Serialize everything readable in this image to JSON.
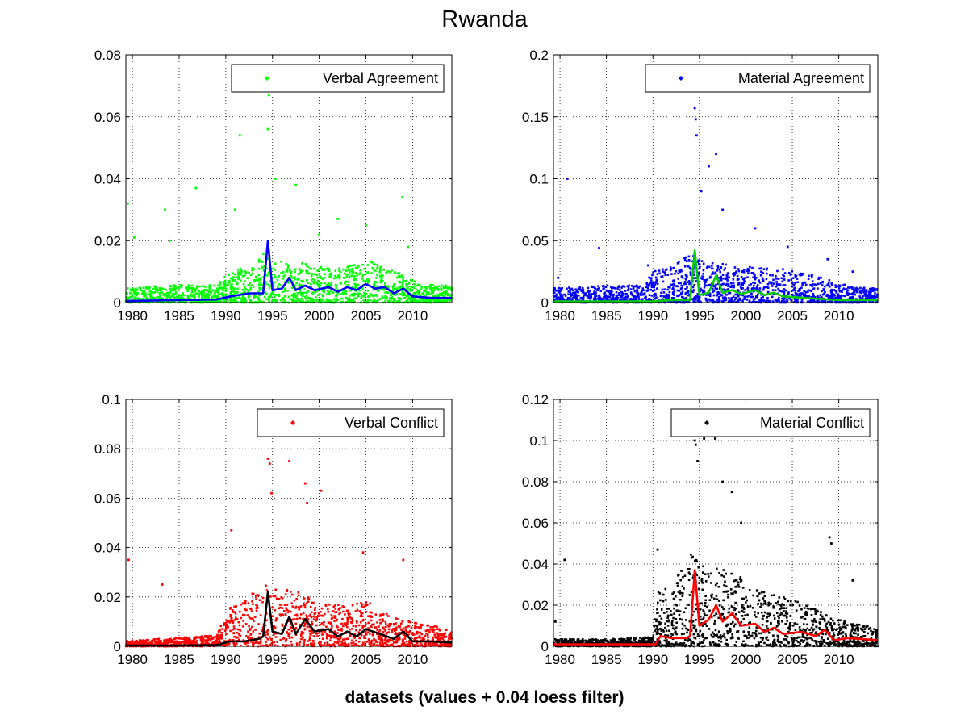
{
  "figure": {
    "title": "Rwanda",
    "footer": "datasets (values + 0.04 loess filter)"
  },
  "chart_data": [
    {
      "type": "scatter",
      "title": "",
      "xlabel": "",
      "ylabel": "",
      "xlim": [
        1979.3,
        2014.2
      ],
      "ylim": [
        0,
        0.08
      ],
      "xticks": [
        "1980",
        "1985",
        "1990",
        "1995",
        "2000",
        "2005",
        "2010"
      ],
      "yticks": [
        "0",
        "0.02",
        "0.04",
        "0.06",
        "0.08"
      ],
      "grid": true,
      "legend": "top-right",
      "series": [
        {
          "name": "Verbal Agreement",
          "kind": "points",
          "color": "#00ff00",
          "outliers": [
            [
              1979.5,
              0.032
            ],
            [
              1980.2,
              0.021
            ],
            [
              1983.5,
              0.03
            ],
            [
              1984.0,
              0.02
            ],
            [
              1986.8,
              0.037
            ],
            [
              1991.5,
              0.054
            ],
            [
              1991.0,
              0.03
            ],
            [
              1994.5,
              0.056
            ],
            [
              1994.6,
              0.067
            ],
            [
              1995.3,
              0.04
            ],
            [
              1997.5,
              0.038
            ],
            [
              2002.0,
              0.027
            ],
            [
              2005.0,
              0.025
            ],
            [
              2008.9,
              0.034
            ],
            [
              2000.0,
              0.022
            ],
            [
              2009.5,
              0.018
            ]
          ]
        },
        {
          "name": "",
          "kind": "smooth",
          "color": "#0000ff",
          "points": [
            [
              1979.3,
              0.0005
            ],
            [
              1985,
              0.0008
            ],
            [
              1989,
              0.001
            ],
            [
              1990.5,
              0.002
            ],
            [
              1992.5,
              0.003
            ],
            [
              1994.0,
              0.003
            ],
            [
              1994.5,
              0.02
            ],
            [
              1995.0,
              0.004
            ],
            [
              1996.0,
              0.0045
            ],
            [
              1996.8,
              0.008
            ],
            [
              1997.5,
              0.004
            ],
            [
              1998.5,
              0.0055
            ],
            [
              1999.5,
              0.004
            ],
            [
              2001,
              0.005
            ],
            [
              2002,
              0.0035
            ],
            [
              2003,
              0.005
            ],
            [
              2004,
              0.004
            ],
            [
              2005,
              0.006
            ],
            [
              2006,
              0.0045
            ],
            [
              2007,
              0.005
            ],
            [
              2008,
              0.003
            ],
            [
              2009,
              0.0045
            ],
            [
              2010,
              0.002
            ],
            [
              2012,
              0.0015
            ],
            [
              2014.2,
              0.0015
            ]
          ]
        }
      ],
      "density": [
        [
          1979,
          0.004
        ],
        [
          1985,
          0.005
        ],
        [
          1989,
          0.005
        ],
        [
          1990,
          0.008
        ],
        [
          1992,
          0.01
        ],
        [
          1994,
          0.014
        ],
        [
          1995,
          0.012
        ],
        [
          1997,
          0.012
        ],
        [
          2000,
          0.01
        ],
        [
          2003,
          0.01
        ],
        [
          2005,
          0.012
        ],
        [
          2007,
          0.01
        ],
        [
          2009,
          0.008
        ],
        [
          2011,
          0.005
        ],
        [
          2014,
          0.005
        ]
      ]
    },
    {
      "type": "scatter",
      "title": "",
      "xlabel": "",
      "ylabel": "",
      "xlim": [
        1979.3,
        2014.2
      ],
      "ylim": [
        0,
        0.2
      ],
      "xticks": [
        "1980",
        "1985",
        "1990",
        "1995",
        "2000",
        "2005",
        "2010"
      ],
      "yticks": [
        "0",
        "0.05",
        "0.1",
        "0.15",
        "0.2"
      ],
      "grid": true,
      "legend": "top-right",
      "series": [
        {
          "name": "Material Agreement",
          "kind": "points",
          "color": "#0000ff",
          "outliers": [
            [
              1980.8,
              0.1
            ],
            [
              1979.8,
              0.02
            ],
            [
              1984.2,
              0.044
            ],
            [
              1989.5,
              0.03
            ],
            [
              1994.5,
              0.157
            ],
            [
              1994.6,
              0.148
            ],
            [
              1994.7,
              0.135
            ],
            [
              1995.2,
              0.09
            ],
            [
              1996.8,
              0.12
            ],
            [
              1996.0,
              0.11
            ],
            [
              1997.5,
              0.075
            ],
            [
              2001.0,
              0.06
            ],
            [
              2004.5,
              0.045
            ],
            [
              2008.8,
              0.035
            ],
            [
              2011.5,
              0.025
            ]
          ]
        },
        {
          "name": "",
          "kind": "smooth",
          "color": "#00cc00",
          "points": [
            [
              1979.3,
              0.001
            ],
            [
              1985,
              0.001
            ],
            [
              1990,
              0.001
            ],
            [
              1992,
              0.002
            ],
            [
              1994.0,
              0.002
            ],
            [
              1994.5,
              0.042
            ],
            [
              1995.0,
              0.006
            ],
            [
              1996.0,
              0.008
            ],
            [
              1996.8,
              0.022
            ],
            [
              1997.5,
              0.008
            ],
            [
              1998.5,
              0.01
            ],
            [
              1999.5,
              0.007
            ],
            [
              2001,
              0.01
            ],
            [
              2002,
              0.006
            ],
            [
              2003,
              0.008
            ],
            [
              2004,
              0.005
            ],
            [
              2006,
              0.004
            ],
            [
              2008,
              0.003
            ],
            [
              2010,
              0.002
            ],
            [
              2014.2,
              0.002
            ]
          ]
        }
      ],
      "density": [
        [
          1979,
          0.01
        ],
        [
          1985,
          0.012
        ],
        [
          1989,
          0.012
        ],
        [
          1990,
          0.022
        ],
        [
          1992,
          0.025
        ],
        [
          1994,
          0.035
        ],
        [
          1995,
          0.03
        ],
        [
          1997,
          0.028
        ],
        [
          2000,
          0.025
        ],
        [
          2003,
          0.025
        ],
        [
          2005,
          0.022
        ],
        [
          2008,
          0.018
        ],
        [
          2011,
          0.012
        ],
        [
          2014,
          0.01
        ]
      ]
    },
    {
      "type": "scatter",
      "title": "",
      "xlabel": "",
      "ylabel": "",
      "xlim": [
        1979.3,
        2014.2
      ],
      "ylim": [
        0,
        0.1
      ],
      "xticks": [
        "1980",
        "1985",
        "1990",
        "1995",
        "2000",
        "2005",
        "2010"
      ],
      "yticks": [
        "0",
        "0.02",
        "0.04",
        "0.06",
        "0.08",
        "0.1"
      ],
      "grid": true,
      "legend": "top-right",
      "series": [
        {
          "name": "Verbal Conflict",
          "kind": "points",
          "color": "#ff0000",
          "outliers": [
            [
              1979.6,
              0.035
            ],
            [
              1983.2,
              0.025
            ],
            [
              1990.6,
              0.047
            ],
            [
              1994.5,
              0.076
            ],
            [
              1994.7,
              0.074
            ],
            [
              1996.8,
              0.075
            ],
            [
              1998.5,
              0.066
            ],
            [
              1998.7,
              0.058
            ],
            [
              2000.2,
              0.063
            ],
            [
              1994.9,
              0.062
            ],
            [
              2004.7,
              0.038
            ],
            [
              2009.0,
              0.035
            ]
          ]
        },
        {
          "name": "",
          "kind": "smooth",
          "color": "#000000",
          "points": [
            [
              1979.3,
              0.0003
            ],
            [
              1985,
              0.0003
            ],
            [
              1989,
              0.0005
            ],
            [
              1990.5,
              0.002
            ],
            [
              1992,
              0.002
            ],
            [
              1993.5,
              0.003
            ],
            [
              1994.0,
              0.004
            ],
            [
              1994.5,
              0.022
            ],
            [
              1995.0,
              0.006
            ],
            [
              1996.0,
              0.005
            ],
            [
              1996.8,
              0.012
            ],
            [
              1997.5,
              0.005
            ],
            [
              1998.5,
              0.011
            ],
            [
              1999.5,
              0.006
            ],
            [
              2001,
              0.007
            ],
            [
              2002,
              0.004
            ],
            [
              2003,
              0.006
            ],
            [
              2004,
              0.004
            ],
            [
              2005,
              0.007
            ],
            [
              2006.5,
              0.005
            ],
            [
              2008,
              0.003
            ],
            [
              2009,
              0.006
            ],
            [
              2010,
              0.002
            ],
            [
              2012,
              0.002
            ],
            [
              2014.2,
              0.0015
            ]
          ]
        }
      ],
      "density": [
        [
          1979,
          0.002
        ],
        [
          1985,
          0.003
        ],
        [
          1989,
          0.004
        ],
        [
          1990.5,
          0.014
        ],
        [
          1992,
          0.016
        ],
        [
          1994,
          0.022
        ],
        [
          1995,
          0.02
        ],
        [
          1997,
          0.02
        ],
        [
          2000,
          0.016
        ],
        [
          2003,
          0.014
        ],
        [
          2005,
          0.016
        ],
        [
          2008,
          0.01
        ],
        [
          2011,
          0.008
        ],
        [
          2014,
          0.006
        ]
      ]
    },
    {
      "type": "scatter",
      "title": "",
      "xlabel": "",
      "ylabel": "",
      "xlim": [
        1979.3,
        2014.2
      ],
      "ylim": [
        0,
        0.12
      ],
      "xticks": [
        "1980",
        "1985",
        "1990",
        "1995",
        "2000",
        "2005",
        "2010"
      ],
      "yticks": [
        "0",
        "0.02",
        "0.04",
        "0.06",
        "0.08",
        "0.1",
        "0.12"
      ],
      "grid": true,
      "legend": "top-right",
      "series": [
        {
          "name": "Material Conflict",
          "kind": "points",
          "color": "#000000",
          "outliers": [
            [
              1979.5,
              0.012
            ],
            [
              1980.5,
              0.042
            ],
            [
              1990.5,
              0.047
            ],
            [
              1994.5,
              0.1
            ],
            [
              1994.6,
              0.098
            ],
            [
              1994.8,
              0.09
            ],
            [
              1995.5,
              0.101
            ],
            [
              1996.7,
              0.101
            ],
            [
              1998.5,
              0.075
            ],
            [
              1997.5,
              0.08
            ],
            [
              1999.5,
              0.06
            ],
            [
              2009.0,
              0.053
            ],
            [
              2009.2,
              0.05
            ],
            [
              2011.5,
              0.032
            ]
          ]
        },
        {
          "name": "",
          "kind": "smooth",
          "color": "#ff0000",
          "points": [
            [
              1979.3,
              0.001
            ],
            [
              1985,
              0.001
            ],
            [
              1990.3,
              0.001
            ],
            [
              1990.8,
              0.005
            ],
            [
              1992,
              0.004
            ],
            [
              1993.5,
              0.004
            ],
            [
              1994.0,
              0.005
            ],
            [
              1994.5,
              0.037
            ],
            [
              1995.0,
              0.01
            ],
            [
              1996.0,
              0.013
            ],
            [
              1996.8,
              0.02
            ],
            [
              1997.5,
              0.012
            ],
            [
              1998.5,
              0.016
            ],
            [
              1999.5,
              0.01
            ],
            [
              2001,
              0.011
            ],
            [
              2002,
              0.007
            ],
            [
              2003,
              0.009
            ],
            [
              2004,
              0.006
            ],
            [
              2006,
              0.007
            ],
            [
              2007.5,
              0.005
            ],
            [
              2008.5,
              0.008
            ],
            [
              2009.5,
              0.003
            ],
            [
              2011,
              0.004
            ],
            [
              2014.2,
              0.003
            ]
          ]
        }
      ],
      "density": [
        [
          1979,
          0.003
        ],
        [
          1985,
          0.003
        ],
        [
          1990,
          0.004
        ],
        [
          1990.5,
          0.025
        ],
        [
          1992,
          0.025
        ],
        [
          1994,
          0.04
        ],
        [
          1995,
          0.035
        ],
        [
          1997,
          0.035
        ],
        [
          2000,
          0.028
        ],
        [
          2003,
          0.022
        ],
        [
          2005,
          0.02
        ],
        [
          2008,
          0.015
        ],
        [
          2011,
          0.01
        ],
        [
          2014,
          0.008
        ]
      ]
    }
  ]
}
